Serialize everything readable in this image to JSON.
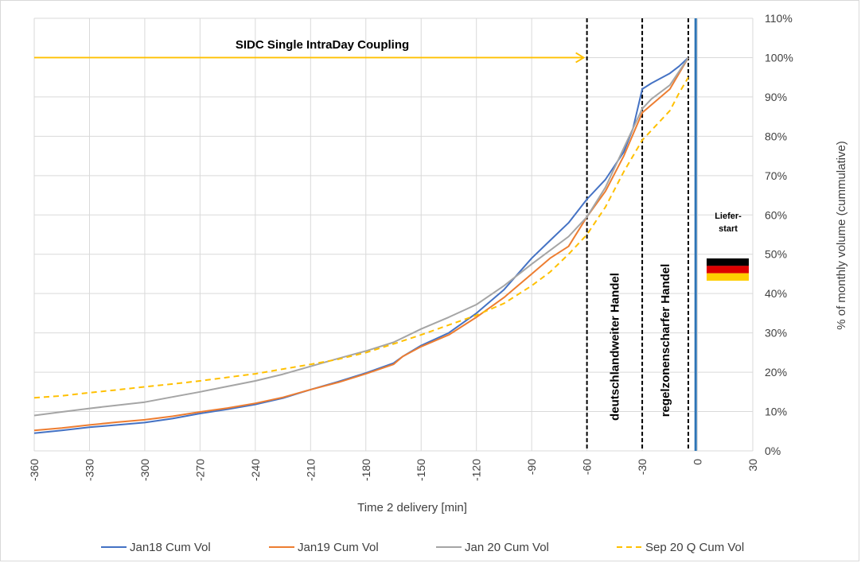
{
  "chart_data": {
    "type": "line",
    "xlabel": "Time 2 delivery [min]",
    "ylabel": "% of monthly volume (cummulative)",
    "xlim": [
      -360,
      30
    ],
    "ylim": [
      0,
      110
    ],
    "x_ticks": [
      "-360",
      "-330",
      "-300",
      "-270",
      "-240",
      "-210",
      "-180",
      "-150",
      "-120",
      "-90",
      "-60",
      "-30",
      "0",
      "30"
    ],
    "y_ticks": [
      "0%",
      "10%",
      "20%",
      "30%",
      "40%",
      "50%",
      "60%",
      "70%",
      "80%",
      "90%",
      "100%",
      "110%"
    ],
    "grid": "both",
    "legend": "bottom",
    "series": [
      {
        "name": "Jan18 Cum Vol",
        "color": "#4472c4",
        "style": "solid",
        "points": [
          [
            -360,
            4.5
          ],
          [
            -345,
            5.2
          ],
          [
            -330,
            6
          ],
          [
            -315,
            6.6
          ],
          [
            -300,
            7.2
          ],
          [
            -285,
            8.2
          ],
          [
            -270,
            9.5
          ],
          [
            -255,
            10.6
          ],
          [
            -240,
            11.8
          ],
          [
            -225,
            13.4
          ],
          [
            -210,
            15.6
          ],
          [
            -195,
            17.6
          ],
          [
            -180,
            19.8
          ],
          [
            -165,
            22.3
          ],
          [
            -160,
            24
          ],
          [
            -150,
            26.8
          ],
          [
            -135,
            30
          ],
          [
            -120,
            35
          ],
          [
            -105,
            41
          ],
          [
            -90,
            49
          ],
          [
            -80,
            53.5
          ],
          [
            -70,
            58
          ],
          [
            -60,
            64
          ],
          [
            -50,
            69
          ],
          [
            -40,
            76
          ],
          [
            -35,
            82
          ],
          [
            -30,
            92
          ],
          [
            -25,
            93.5
          ],
          [
            -15,
            96
          ],
          [
            -10,
            97.8
          ],
          [
            -5,
            100
          ]
        ]
      },
      {
        "name": "Jan19 Cum Vol",
        "color": "#ed7d31",
        "style": "solid",
        "points": [
          [
            -360,
            5.2
          ],
          [
            -345,
            5.8
          ],
          [
            -330,
            6.6
          ],
          [
            -315,
            7.3
          ],
          [
            -300,
            7.9
          ],
          [
            -285,
            8.8
          ],
          [
            -270,
            9.9
          ],
          [
            -255,
            10.9
          ],
          [
            -240,
            12.1
          ],
          [
            -225,
            13.6
          ],
          [
            -210,
            15.6
          ],
          [
            -195,
            17.4
          ],
          [
            -180,
            19.6
          ],
          [
            -165,
            22
          ],
          [
            -160,
            24
          ],
          [
            -150,
            26.5
          ],
          [
            -135,
            29.5
          ],
          [
            -120,
            34
          ],
          [
            -105,
            39
          ],
          [
            -90,
            45
          ],
          [
            -80,
            49
          ],
          [
            -70,
            52
          ],
          [
            -60,
            59.5
          ],
          [
            -50,
            66
          ],
          [
            -40,
            75
          ],
          [
            -30,
            86
          ],
          [
            -25,
            88
          ],
          [
            -15,
            92
          ],
          [
            -10,
            96
          ],
          [
            -5,
            100
          ]
        ]
      },
      {
        "name": "Jan 20 Cum Vol",
        "color": "#a5a5a5",
        "style": "solid",
        "points": [
          [
            -360,
            9
          ],
          [
            -345,
            9.9
          ],
          [
            -330,
            10.8
          ],
          [
            -315,
            11.6
          ],
          [
            -300,
            12.4
          ],
          [
            -285,
            13.7
          ],
          [
            -270,
            15
          ],
          [
            -255,
            16.4
          ],
          [
            -240,
            17.8
          ],
          [
            -225,
            19.5
          ],
          [
            -210,
            21.5
          ],
          [
            -195,
            23.5
          ],
          [
            -180,
            25.4
          ],
          [
            -165,
            27.6
          ],
          [
            -150,
            31
          ],
          [
            -135,
            34
          ],
          [
            -120,
            37.2
          ],
          [
            -105,
            42
          ],
          [
            -90,
            47.5
          ],
          [
            -80,
            51
          ],
          [
            -70,
            54.5
          ],
          [
            -60,
            59.5
          ],
          [
            -50,
            67
          ],
          [
            -40,
            77
          ],
          [
            -30,
            87
          ],
          [
            -25,
            89.5
          ],
          [
            -15,
            93
          ],
          [
            -10,
            96.5
          ],
          [
            -5,
            100
          ]
        ]
      },
      {
        "name": "Sep 20 Q Cum Vol",
        "color": "#ffc000",
        "style": "dashed",
        "points": [
          [
            -360,
            13.5
          ],
          [
            -345,
            14
          ],
          [
            -330,
            14.8
          ],
          [
            -315,
            15.5
          ],
          [
            -300,
            16.3
          ],
          [
            -285,
            17
          ],
          [
            -270,
            17.8
          ],
          [
            -255,
            18.7
          ],
          [
            -240,
            19.6
          ],
          [
            -225,
            20.8
          ],
          [
            -210,
            22
          ],
          [
            -195,
            23.3
          ],
          [
            -180,
            25
          ],
          [
            -165,
            27.2
          ],
          [
            -150,
            29.5
          ],
          [
            -135,
            32
          ],
          [
            -120,
            34.5
          ],
          [
            -105,
            37.5
          ],
          [
            -90,
            42
          ],
          [
            -80,
            45.5
          ],
          [
            -70,
            50
          ],
          [
            -60,
            55
          ],
          [
            -50,
            62
          ],
          [
            -40,
            71
          ],
          [
            -30,
            79
          ],
          [
            -25,
            81.5
          ],
          [
            -15,
            86.5
          ],
          [
            -10,
            91
          ],
          [
            -5,
            95
          ]
        ]
      }
    ],
    "vlines": [
      {
        "x": -60,
        "color": "#000000",
        "style": "dashed"
      },
      {
        "x": -30,
        "color": "#000000",
        "style": "dashed"
      },
      {
        "x": -5,
        "color": "#000000",
        "style": "dashed"
      },
      {
        "x": -1,
        "color": "#2e75b6",
        "style": "solid"
      }
    ],
    "annotations": {
      "sidc_label": "SIDC Single IntraDay Coupling",
      "sidc_arrow": {
        "from": -360,
        "to": -60,
        "y": 100,
        "color": "#ffc000"
      },
      "zone1_label": "deutschlandweiter Handel",
      "zone2_label": "regelzonenscharfer Handel",
      "delivery_label_line1": "Liefer-",
      "delivery_label_line2": "start"
    },
    "flag_colors": [
      "#000000",
      "#dd0000",
      "#ffce00"
    ]
  }
}
